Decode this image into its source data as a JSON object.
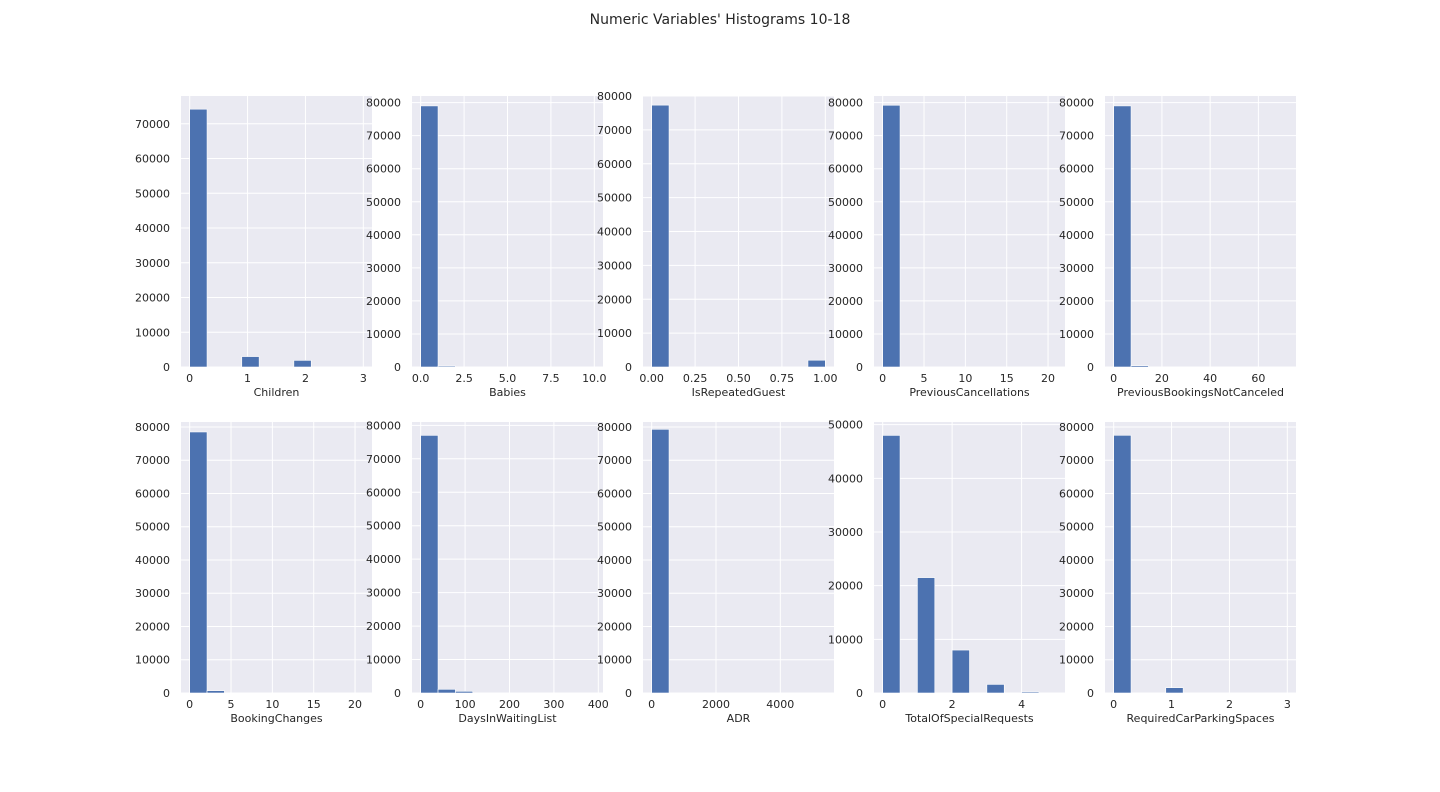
{
  "figure": {
    "title": "Numeric Variables' Histograms 10-18"
  },
  "style": {
    "bar_color": "#4c72b0",
    "panel_bg": "#eaeaf2",
    "grid_color": "#ffffff",
    "text_color": "#262626"
  },
  "chart_data": [
    {
      "type": "bar",
      "xlabel": "Children",
      "xlim": [
        -0.15,
        3.15
      ],
      "ylim": [
        0,
        78000
      ],
      "xticks": [
        0,
        1,
        2,
        3
      ],
      "xtick_labels": [
        "0",
        "1",
        "2",
        "3"
      ],
      "yticks": [
        0,
        10000,
        20000,
        30000,
        40000,
        50000,
        60000,
        70000
      ],
      "ytick_labels": [
        "0",
        "10000",
        "20000",
        "30000",
        "40000",
        "50000",
        "60000",
        "70000"
      ],
      "bins": [
        [
          0,
          0.3,
          74200
        ],
        [
          0.3,
          0.6,
          0
        ],
        [
          0.6,
          0.9,
          0
        ],
        [
          0.9,
          1.2,
          3000
        ],
        [
          1.2,
          1.5,
          0
        ],
        [
          1.5,
          1.8,
          0
        ],
        [
          1.8,
          2.1,
          1900
        ],
        [
          2.1,
          2.4,
          0
        ],
        [
          2.4,
          2.7,
          0
        ],
        [
          2.7,
          3.0,
          80
        ]
      ]
    },
    {
      "type": "bar",
      "xlabel": "Babies",
      "xlim": [
        -0.5,
        10.5
      ],
      "ylim": [
        0,
        82000
      ],
      "xticks": [
        0,
        2.5,
        5,
        7.5,
        10
      ],
      "xtick_labels": [
        "0.0",
        "2.5",
        "5.0",
        "7.5",
        "10.0"
      ],
      "yticks": [
        0,
        10000,
        20000,
        30000,
        40000,
        50000,
        60000,
        70000,
        80000
      ],
      "ytick_labels": [
        "0",
        "10000",
        "20000",
        "30000",
        "40000",
        "50000",
        "60000",
        "70000",
        "80000"
      ],
      "bins": [
        [
          0,
          1,
          79000
        ],
        [
          1,
          2,
          300
        ],
        [
          2,
          3,
          0
        ],
        [
          3,
          4,
          0
        ],
        [
          4,
          5,
          0
        ],
        [
          5,
          6,
          0
        ],
        [
          6,
          7,
          0
        ],
        [
          7,
          8,
          0
        ],
        [
          8,
          9,
          0
        ],
        [
          9,
          10,
          5
        ]
      ]
    },
    {
      "type": "bar",
      "xlabel": "IsRepeatedGuest",
      "xlim": [
        -0.05,
        1.05
      ],
      "ylim": [
        0,
        80000
      ],
      "xticks": [
        0,
        0.25,
        0.5,
        0.75,
        1.0
      ],
      "xtick_labels": [
        "0.00",
        "0.25",
        "0.50",
        "0.75",
        "1.00"
      ],
      "yticks": [
        0,
        10000,
        20000,
        30000,
        40000,
        50000,
        60000,
        70000,
        80000
      ],
      "ytick_labels": [
        "0",
        "10000",
        "20000",
        "30000",
        "40000",
        "50000",
        "60000",
        "70000",
        "80000"
      ],
      "bins": [
        [
          0,
          0.1,
          77300
        ],
        [
          0.1,
          0.2,
          0
        ],
        [
          0.2,
          0.3,
          0
        ],
        [
          0.3,
          0.4,
          0
        ],
        [
          0.4,
          0.5,
          0
        ],
        [
          0.5,
          0.6,
          0
        ],
        [
          0.6,
          0.7,
          0
        ],
        [
          0.7,
          0.8,
          0
        ],
        [
          0.8,
          0.9,
          0
        ],
        [
          0.9,
          1.0,
          2000
        ]
      ]
    },
    {
      "type": "bar",
      "xlabel": "PreviousCancellations",
      "xlim": [
        -1.05,
        22.05
      ],
      "ylim": [
        0,
        82000
      ],
      "xticks": [
        0,
        5,
        10,
        15,
        20
      ],
      "xtick_labels": [
        "0",
        "5",
        "10",
        "15",
        "20"
      ],
      "yticks": [
        0,
        10000,
        20000,
        30000,
        40000,
        50000,
        60000,
        70000,
        80000
      ],
      "ytick_labels": [
        "0",
        "10000",
        "20000",
        "30000",
        "40000",
        "50000",
        "60000",
        "70000",
        "80000"
      ],
      "bins": [
        [
          0,
          2.1,
          79200
        ],
        [
          2.1,
          4.2,
          100
        ],
        [
          4.2,
          6.3,
          0
        ],
        [
          6.3,
          8.4,
          0
        ],
        [
          8.4,
          10.5,
          0
        ],
        [
          10.5,
          12.6,
          0
        ],
        [
          12.6,
          14.7,
          0
        ],
        [
          14.7,
          16.8,
          0
        ],
        [
          16.8,
          18.9,
          0
        ],
        [
          18.9,
          21.0,
          20
        ]
      ]
    },
    {
      "type": "bar",
      "xlabel": "PreviousBookingsNotCanceled",
      "xlim": [
        -3.6,
        75.6
      ],
      "ylim": [
        0,
        82000
      ],
      "xticks": [
        0,
        20,
        40,
        60
      ],
      "xtick_labels": [
        "0",
        "20",
        "40",
        "60"
      ],
      "yticks": [
        0,
        10000,
        20000,
        30000,
        40000,
        50000,
        60000,
        70000,
        80000
      ],
      "ytick_labels": [
        "0",
        "10000",
        "20000",
        "30000",
        "40000",
        "50000",
        "60000",
        "70000",
        "80000"
      ],
      "bins": [
        [
          0,
          7.2,
          79000
        ],
        [
          7.2,
          14.4,
          400
        ],
        [
          14.4,
          21.6,
          100
        ],
        [
          21.6,
          28.8,
          50
        ],
        [
          28.8,
          36.0,
          0
        ],
        [
          36.0,
          43.2,
          0
        ],
        [
          43.2,
          50.4,
          0
        ],
        [
          50.4,
          57.6,
          0
        ],
        [
          57.6,
          64.8,
          0
        ],
        [
          64.8,
          72.0,
          20
        ]
      ]
    },
    {
      "type": "bar",
      "xlabel": "BookingChanges",
      "xlim": [
        -1.05,
        22.05
      ],
      "ylim": [
        0,
        81500
      ],
      "xticks": [
        0,
        5,
        10,
        15,
        20
      ],
      "xtick_labels": [
        "0",
        "5",
        "10",
        "15",
        "20"
      ],
      "yticks": [
        0,
        10000,
        20000,
        30000,
        40000,
        50000,
        60000,
        70000,
        80000
      ],
      "ytick_labels": [
        "0",
        "10000",
        "20000",
        "30000",
        "40000",
        "50000",
        "60000",
        "70000",
        "80000"
      ],
      "bins": [
        [
          0,
          2.1,
          78500
        ],
        [
          2.1,
          4.2,
          700
        ],
        [
          4.2,
          6.3,
          80
        ],
        [
          6.3,
          8.4,
          0
        ],
        [
          8.4,
          10.5,
          0
        ],
        [
          10.5,
          12.6,
          0
        ],
        [
          12.6,
          14.7,
          0
        ],
        [
          14.7,
          16.8,
          0
        ],
        [
          16.8,
          18.9,
          0
        ],
        [
          18.9,
          21.0,
          10
        ]
      ]
    },
    {
      "type": "bar",
      "xlabel": "DaysInWaitingList",
      "xlim": [
        -19.55,
        410.55
      ],
      "ylim": [
        0,
        81000
      ],
      "xticks": [
        0,
        100,
        200,
        300,
        400
      ],
      "xtick_labels": [
        "0",
        "100",
        "200",
        "300",
        "400"
      ],
      "yticks": [
        0,
        10000,
        20000,
        30000,
        40000,
        50000,
        60000,
        70000,
        80000
      ],
      "ytick_labels": [
        "0",
        "10000",
        "20000",
        "30000",
        "40000",
        "50000",
        "60000",
        "70000",
        "80000"
      ],
      "bins": [
        [
          0,
          39.1,
          77000
        ],
        [
          39.1,
          78.2,
          1100
        ],
        [
          78.2,
          117.3,
          500
        ],
        [
          117.3,
          156.4,
          100
        ],
        [
          156.4,
          195.5,
          100
        ],
        [
          195.5,
          234.6,
          50
        ],
        [
          234.6,
          273.7,
          0
        ],
        [
          273.7,
          312.8,
          0
        ],
        [
          312.8,
          351.9,
          0
        ],
        [
          351.9,
          391.0,
          20
        ]
      ]
    },
    {
      "type": "bar",
      "xlabel": "ADR",
      "xlim": [
        -270,
        5670
      ],
      "ylim": [
        0,
        81500
      ],
      "xticks": [
        0,
        2000,
        4000
      ],
      "xtick_labels": [
        "0",
        "2000",
        "4000"
      ],
      "yticks": [
        0,
        10000,
        20000,
        30000,
        40000,
        50000,
        60000,
        70000,
        80000
      ],
      "ytick_labels": [
        "0",
        "10000",
        "20000",
        "30000",
        "40000",
        "50000",
        "60000",
        "70000",
        "80000"
      ],
      "bins": [
        [
          0,
          540,
          79300
        ],
        [
          540,
          1080,
          0
        ],
        [
          1080,
          1620,
          0
        ],
        [
          1620,
          2160,
          0
        ],
        [
          2160,
          2700,
          0
        ],
        [
          2700,
          3240,
          0
        ],
        [
          3240,
          3780,
          0
        ],
        [
          3780,
          4320,
          0
        ],
        [
          4320,
          4860,
          0
        ],
        [
          4860,
          5400,
          1
        ]
      ]
    },
    {
      "type": "bar",
      "xlabel": "TotalOfSpecialRequests",
      "xlim": [
        -0.25,
        5.25
      ],
      "ylim": [
        0,
        50500
      ],
      "xticks": [
        0,
        2,
        4
      ],
      "xtick_labels": [
        "0",
        "2",
        "4"
      ],
      "yticks": [
        0,
        10000,
        20000,
        30000,
        40000,
        50000
      ],
      "ytick_labels": [
        "0",
        "10000",
        "20000",
        "30000",
        "40000",
        "50000"
      ],
      "bins": [
        [
          0,
          0.5,
          48000
        ],
        [
          0.5,
          1.0,
          0
        ],
        [
          1.0,
          1.5,
          21500
        ],
        [
          1.5,
          2.0,
          0
        ],
        [
          2.0,
          2.5,
          8000
        ],
        [
          2.5,
          3.0,
          0
        ],
        [
          3.0,
          3.5,
          1600
        ],
        [
          3.5,
          4.0,
          0
        ],
        [
          4.0,
          4.5,
          200
        ],
        [
          4.5,
          5.0,
          30
        ]
      ]
    },
    {
      "type": "bar",
      "xlabel": "RequiredCarParkingSpaces",
      "xlim": [
        -0.15,
        3.15
      ],
      "ylim": [
        0,
        81500
      ],
      "xticks": [
        0,
        1,
        2,
        3
      ],
      "xtick_labels": [
        "0",
        "1",
        "2",
        "3"
      ],
      "yticks": [
        0,
        10000,
        20000,
        30000,
        40000,
        50000,
        60000,
        70000,
        80000
      ],
      "ytick_labels": [
        "0",
        "10000",
        "20000",
        "30000",
        "40000",
        "50000",
        "60000",
        "70000",
        "80000"
      ],
      "bins": [
        [
          0,
          0.3,
          77500
        ],
        [
          0.3,
          0.6,
          0
        ],
        [
          0.6,
          0.9,
          0
        ],
        [
          0.9,
          1.2,
          1600
        ],
        [
          1.2,
          1.5,
          0
        ],
        [
          1.5,
          1.8,
          0
        ],
        [
          1.8,
          2.1,
          20
        ],
        [
          2.1,
          2.4,
          0
        ],
        [
          2.4,
          2.7,
          0
        ],
        [
          2.7,
          3.0,
          5
        ]
      ]
    }
  ]
}
